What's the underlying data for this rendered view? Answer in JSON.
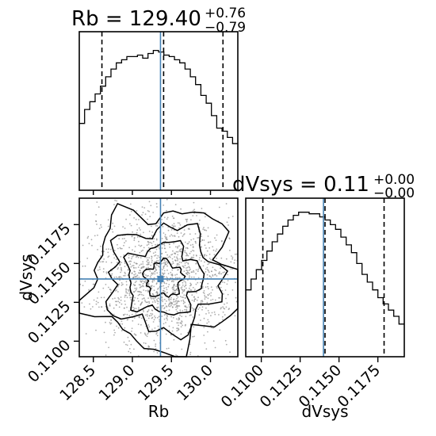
{
  "chart_data": [
    {
      "type": "histogram",
      "panel": "marginal",
      "parameter": "Rb",
      "title": {
        "base": "Rb = 129.40",
        "sup": "+0.76",
        "sub": "−0.79"
      },
      "x_range": [
        128.32,
        130.35
      ],
      "quantiles": [
        128.61,
        130.16
      ],
      "truth": 129.36,
      "median": 129.4,
      "bins": {
        "x0": 128.32,
        "width": 0.0677,
        "counts": [
          0.43,
          0.52,
          0.57,
          0.62,
          0.67,
          0.73,
          0.78,
          0.82,
          0.84,
          0.86,
          0.86,
          0.87,
          0.85,
          0.88,
          0.9,
          0.89,
          0.87,
          0.86,
          0.84,
          0.82,
          0.78,
          0.73,
          0.68,
          0.61,
          0.56,
          0.48,
          0.4,
          0.38,
          0.34,
          0.3
        ]
      }
    },
    {
      "type": "histogram",
      "panel": "marginal",
      "parameter": "dVsys",
      "title": {
        "base": "dVsys = 0.11",
        "sup": "+0.00",
        "sub": "−0.00"
      },
      "x_range": [
        0.109,
        0.1192
      ],
      "xlabel": "dVsys",
      "x_ticks": [
        "0.1100",
        "0.1125",
        "0.1150",
        "0.1175"
      ],
      "quantiles": [
        0.1101,
        0.1179
      ],
      "truth": 0.114,
      "median": 0.1141,
      "bins": {
        "x0": 0.109,
        "width": 0.00034,
        "counts": [
          0.43,
          0.5,
          0.56,
          0.62,
          0.68,
          0.74,
          0.79,
          0.84,
          0.88,
          0.91,
          0.93,
          0.93,
          0.92,
          0.92,
          0.9,
          0.88,
          0.85,
          0.82,
          0.77,
          0.72,
          0.67,
          0.6,
          0.53,
          0.48,
          0.43,
          0.38,
          0.34,
          0.3,
          0.26,
          0.21
        ]
      }
    },
    {
      "type": "contour",
      "panel": "joint",
      "x_param": "Rb",
      "y_param": "dVsys",
      "xlabel": "Rb",
      "ylabel": "dVsys",
      "x_range": [
        128.32,
        130.35
      ],
      "y_range": [
        0.109,
        0.1192
      ],
      "x_ticks": [
        "128.5",
        "129.0",
        "129.5",
        "130.0"
      ],
      "y_ticks": [
        "0.1100",
        "0.1125",
        "0.1150",
        "0.1175"
      ],
      "truth": [
        129.36,
        0.114
      ],
      "mean": [
        129.4,
        0.114
      ],
      "sigma": [
        0.4,
        0.0019
      ],
      "contour_levels_sigma": [
        0.5,
        1.0,
        1.5,
        2.0
      ]
    }
  ],
  "labels": {
    "x_rb": "Rb",
    "x_dv": "dVsys",
    "y_dv": "dVsys"
  }
}
